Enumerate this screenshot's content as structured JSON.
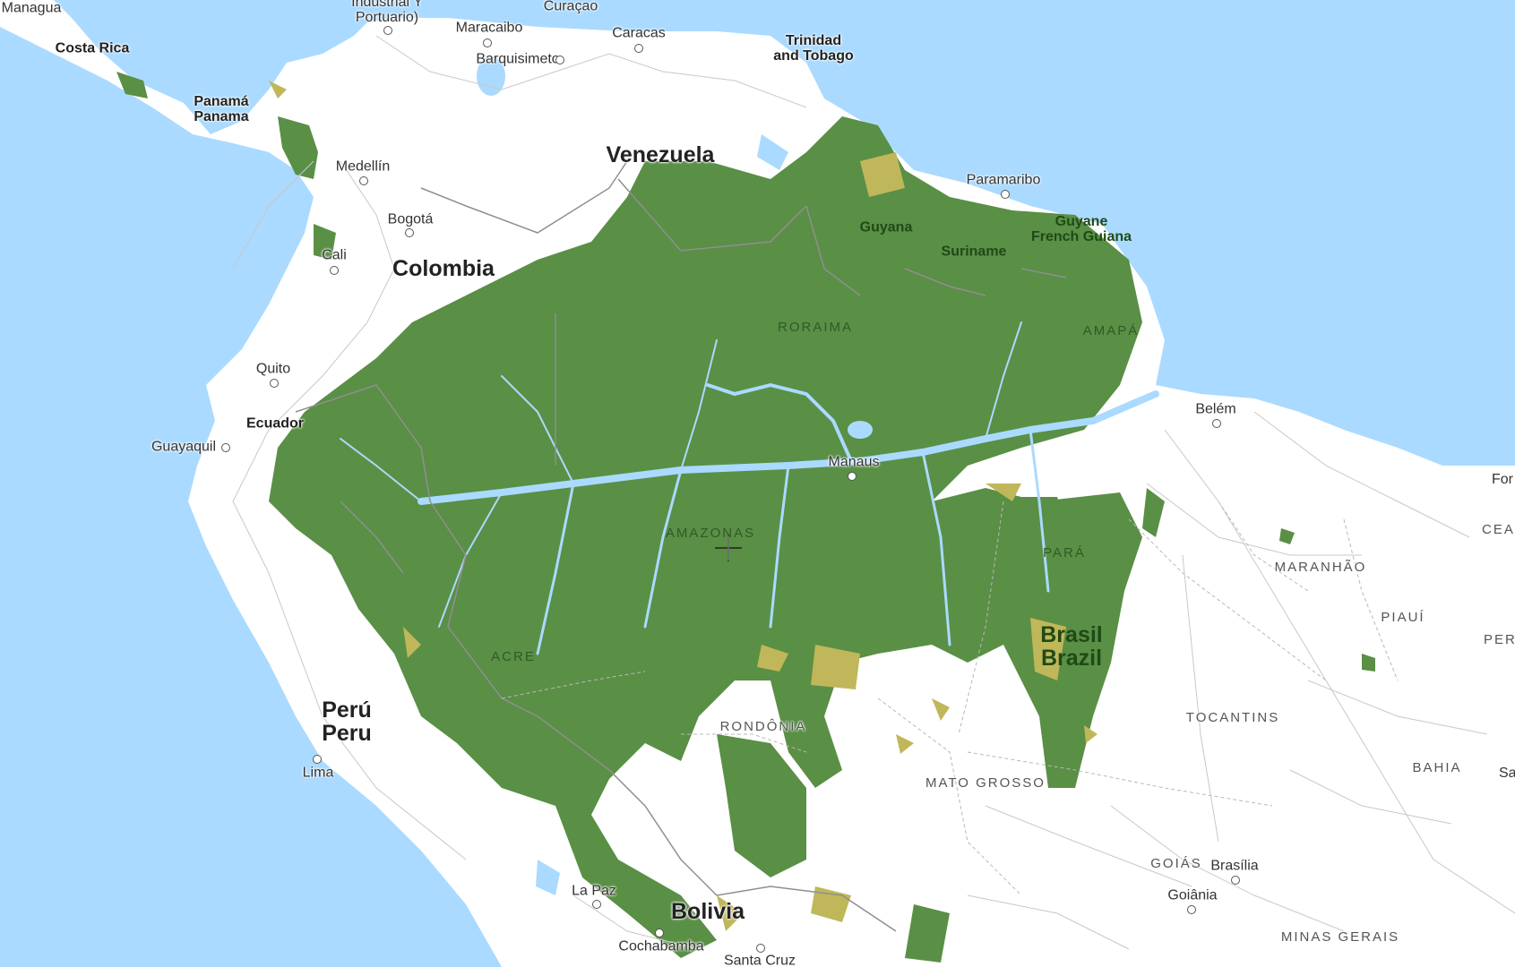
{
  "colors": {
    "ocean": "#aadaff",
    "land": "#ffffff",
    "forest": "#5a8f46",
    "forest_loss": "#c0b75a",
    "border": "#9a9a9a",
    "road": "#c8c8c8",
    "river": "#aadaff"
  },
  "countries": [
    {
      "text": "Costa Rica"
    },
    {
      "text": "Panamá\nPanama"
    },
    {
      "text": "Venezuela"
    },
    {
      "text": "Colombia"
    },
    {
      "text": "Ecuador"
    },
    {
      "text": "Perú\nPeru"
    },
    {
      "text": "Bolivia"
    },
    {
      "text": "Brasil\nBrazil"
    },
    {
      "text": "Guyana"
    },
    {
      "text": "Suriname"
    },
    {
      "text": "Guyane\nFrench Guiana"
    },
    {
      "text": "Trinidad\nand Tobago"
    }
  ],
  "cities": [
    {
      "text": "Managua"
    },
    {
      "text": "Industrial Y\nPortuario)"
    },
    {
      "text": "Maracaibo"
    },
    {
      "text": "Curaçao"
    },
    {
      "text": "Caracas"
    },
    {
      "text": "Barquisimeto"
    },
    {
      "text": "Medellín"
    },
    {
      "text": "Bogotá"
    },
    {
      "text": "Cali"
    },
    {
      "text": "Quito"
    },
    {
      "text": "Guayaquil"
    },
    {
      "text": "Paramaribo"
    },
    {
      "text": "Manaus"
    },
    {
      "text": "Belém"
    },
    {
      "text": "Lima"
    },
    {
      "text": "La Paz"
    },
    {
      "text": "Cochabamba"
    },
    {
      "text": "Santa Cruz"
    },
    {
      "text": "Brasília"
    },
    {
      "text": "Goiânia"
    },
    {
      "text": "For"
    },
    {
      "text": "Sa"
    }
  ],
  "states": [
    {
      "text": "RORAIMA"
    },
    {
      "text": "AMAPÁ"
    },
    {
      "text": "AMAZONAS"
    },
    {
      "text": "PARÁ"
    },
    {
      "text": "ACRE"
    },
    {
      "text": "RONDÔNIA"
    },
    {
      "text": "MATO GROSSO"
    },
    {
      "text": "MARANHÃO"
    },
    {
      "text": "PIAUÍ"
    },
    {
      "text": "CEAR"
    },
    {
      "text": "PER"
    },
    {
      "text": "TOCANTINS"
    },
    {
      "text": "BAHIA"
    },
    {
      "text": "GOIÁS"
    },
    {
      "text": "MINAS GERAIS"
    }
  ],
  "icons": {
    "cursor": "crosshair-cursor-icon"
  }
}
